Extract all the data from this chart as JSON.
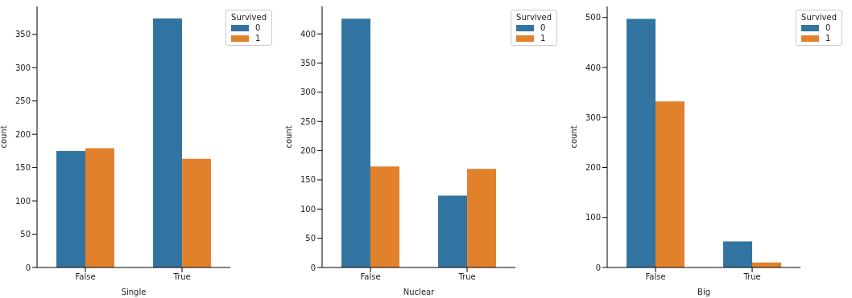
{
  "chart_data": [
    {
      "type": "bar",
      "categories": [
        "False",
        "True"
      ],
      "xlabel": "Single",
      "ylabel": "count",
      "legend_title": "Survived",
      "legend": "top right",
      "ylim": [
        0,
        392
      ],
      "yticks": [
        0,
        50,
        100,
        150,
        200,
        250,
        300,
        350
      ],
      "series": [
        {
          "name": "0",
          "color": "#3274a1",
          "values": [
            175,
            374
          ]
        },
        {
          "name": "1",
          "color": "#e1812c",
          "values": [
            179,
            163
          ]
        }
      ]
    },
    {
      "type": "bar",
      "categories": [
        "False",
        "True"
      ],
      "xlabel": "Nuclear",
      "ylabel": "count",
      "legend_title": "Survived",
      "legend": "top right",
      "ylim": [
        0,
        447
      ],
      "yticks": [
        0,
        50,
        100,
        150,
        200,
        250,
        300,
        350,
        400
      ],
      "series": [
        {
          "name": "0",
          "color": "#3274a1",
          "values": [
            426,
            123
          ]
        },
        {
          "name": "1",
          "color": "#e1812c",
          "values": [
            173,
            169
          ]
        }
      ]
    },
    {
      "type": "bar",
      "categories": [
        "False",
        "True"
      ],
      "xlabel": "Big",
      "ylabel": "count",
      "legend_title": "Survived",
      "legend": "top right",
      "ylim": [
        0,
        522
      ],
      "yticks": [
        0,
        100,
        200,
        300,
        400,
        500
      ],
      "series": [
        {
          "name": "0",
          "color": "#3274a1",
          "values": [
            497,
            52
          ]
        },
        {
          "name": "1",
          "color": "#e1812c",
          "values": [
            332,
            10
          ]
        }
      ]
    }
  ]
}
